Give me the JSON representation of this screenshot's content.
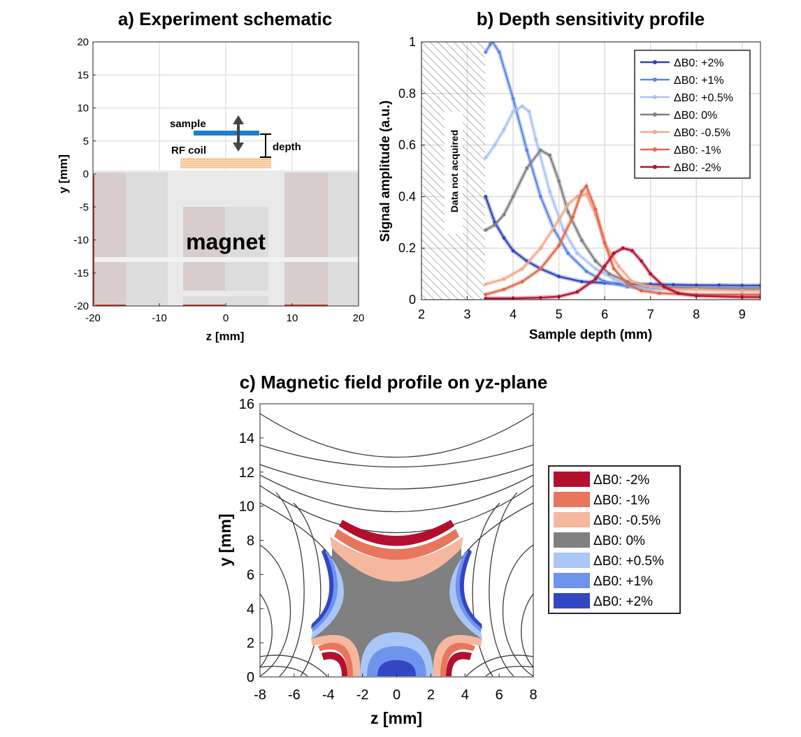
{
  "chart_data": [
    {
      "panel": "a",
      "type": "diagram",
      "title": "a) Experiment schematic",
      "xlabel": "z [mm]",
      "ylabel": "y [mm]",
      "xlim": [
        -20,
        20
      ],
      "ylim": [
        -20,
        20
      ],
      "xticks": [
        -20,
        -10,
        0,
        10,
        20
      ],
      "yticks": [
        20,
        15,
        10,
        5,
        0,
        -5,
        -10,
        -15,
        -20
      ],
      "grid": true,
      "labels": {
        "sample": "sample",
        "rf_coil": "RF coil",
        "depth": "depth",
        "magnet": "magnet"
      },
      "colors": {
        "sample": "#1f7fce",
        "coil": "#f0b070",
        "magnet_dark": "#d6cccc",
        "magnet_light": "#dcdcdc",
        "frame": "#e6e6e6"
      }
    },
    {
      "panel": "b",
      "type": "line",
      "title": "b) Depth sensitivity profile",
      "xlabel": "Sample depth (mm)",
      "ylabel": "Signal amplitude (a.u.)",
      "xlim": [
        2,
        9.4
      ],
      "ylim": [
        0,
        1
      ],
      "xticks": [
        2,
        3,
        4,
        5,
        6,
        7,
        8,
        9
      ],
      "yticks": [
        0,
        0.2,
        0.4,
        0.6,
        0.8,
        1
      ],
      "grid": true,
      "legend_position": "top-right",
      "hatched_region": {
        "x_from": 2.0,
        "x_to": 3.4,
        "label": "Data not acquired"
      },
      "series": [
        {
          "name": "ΔB0: +2%",
          "color": "#2d44b8",
          "x": [
            3.4,
            3.6,
            3.8,
            4.0,
            4.3,
            4.6,
            5.0,
            5.5,
            6.0,
            6.5,
            7.0,
            7.5,
            8.0,
            8.5,
            9.0,
            9.4
          ],
          "y": [
            0.4,
            0.3,
            0.24,
            0.19,
            0.15,
            0.12,
            0.09,
            0.07,
            0.065,
            0.06,
            0.06,
            0.058,
            0.056,
            0.056,
            0.055,
            0.055
          ]
        },
        {
          "name": "ΔB0: +1%",
          "color": "#5b86e6",
          "x": [
            3.4,
            3.5,
            3.55,
            3.7,
            4.0,
            4.3,
            4.6,
            4.9,
            5.2,
            5.6,
            6.0,
            6.5,
            7.0,
            7.5,
            8.0,
            9.0,
            9.4
          ],
          "y": [
            0.96,
            0.99,
            1.0,
            0.96,
            0.78,
            0.58,
            0.4,
            0.27,
            0.18,
            0.11,
            0.07,
            0.05,
            0.045,
            0.045,
            0.045,
            0.045,
            0.045
          ]
        },
        {
          "name": "ΔB0: +0.5%",
          "color": "#a8c4f2",
          "x": [
            3.4,
            3.6,
            3.8,
            4.0,
            4.2,
            4.35,
            4.5,
            4.8,
            5.1,
            5.4,
            5.8,
            6.2,
            6.6,
            7.0,
            8.0,
            9.0,
            9.4
          ],
          "y": [
            0.55,
            0.6,
            0.66,
            0.73,
            0.75,
            0.73,
            0.62,
            0.42,
            0.27,
            0.18,
            0.12,
            0.08,
            0.05,
            0.04,
            0.04,
            0.04,
            0.04
          ]
        },
        {
          "name": "ΔB0: 0%",
          "color": "#808080",
          "x": [
            3.4,
            3.6,
            3.8,
            4.0,
            4.3,
            4.6,
            4.8,
            5.0,
            5.2,
            5.5,
            5.8,
            6.1,
            6.5,
            7.0,
            8.0,
            9.0,
            9.4
          ],
          "y": [
            0.27,
            0.29,
            0.33,
            0.4,
            0.51,
            0.58,
            0.56,
            0.46,
            0.34,
            0.23,
            0.15,
            0.1,
            0.07,
            0.05,
            0.045,
            0.04,
            0.04
          ]
        },
        {
          "name": "ΔB0: -0.5%",
          "color": "#f3a98b",
          "x": [
            3.4,
            3.8,
            4.2,
            4.6,
            5.0,
            5.2,
            5.4,
            5.6,
            5.8,
            6.0,
            6.3,
            6.6,
            7.0,
            7.5,
            8.0,
            9.0,
            9.4
          ],
          "y": [
            0.06,
            0.08,
            0.12,
            0.2,
            0.31,
            0.37,
            0.4,
            0.41,
            0.33,
            0.22,
            0.13,
            0.07,
            0.05,
            0.04,
            0.04,
            0.035,
            0.035
          ]
        },
        {
          "name": "ΔB0: -1%",
          "color": "#e2664a",
          "x": [
            3.4,
            3.8,
            4.2,
            4.6,
            5.0,
            5.3,
            5.5,
            5.6,
            5.8,
            6.0,
            6.2,
            6.5,
            6.8,
            7.2,
            8.0,
            9.0,
            9.4
          ],
          "y": [
            0.02,
            0.04,
            0.07,
            0.12,
            0.21,
            0.32,
            0.42,
            0.44,
            0.35,
            0.22,
            0.12,
            0.06,
            0.035,
            0.025,
            0.02,
            0.02,
            0.02
          ]
        },
        {
          "name": "ΔB0: -2%",
          "color": "#b3102e",
          "x": [
            3.4,
            4.0,
            4.6,
            5.0,
            5.4,
            5.8,
            6.0,
            6.2,
            6.4,
            6.6,
            6.8,
            7.0,
            7.3,
            7.6,
            8.0,
            9.0,
            9.4
          ],
          "y": [
            0.005,
            0.005,
            0.008,
            0.012,
            0.03,
            0.08,
            0.13,
            0.18,
            0.2,
            0.19,
            0.15,
            0.1,
            0.05,
            0.025,
            0.015,
            0.01,
            0.01
          ]
        }
      ]
    },
    {
      "panel": "c",
      "type": "contour",
      "title": "c) Magnetic field profile on yz-plane",
      "xlabel": "z [mm]",
      "ylabel": "y [mm]",
      "xlim": [
        -8,
        8
      ],
      "ylim": [
        0,
        16
      ],
      "xticks": [
        -8,
        -6,
        -4,
        -2,
        0,
        2,
        4,
        6,
        8
      ],
      "yticks": [
        16,
        14,
        12,
        10,
        8,
        6,
        4,
        2,
        0
      ],
      "legend_position": "right",
      "legend": [
        {
          "name": "ΔB0: -2%",
          "color": "#b3102e"
        },
        {
          "name": "ΔB0: -1%",
          "color": "#e8765c"
        },
        {
          "name": "ΔB0: -0.5%",
          "color": "#f5b89f"
        },
        {
          "name": "ΔB0: 0%",
          "color": "#808080"
        },
        {
          "name": "ΔB0: +0.5%",
          "color": "#a9c6f7"
        },
        {
          "name": "ΔB0: +1%",
          "color": "#6f94ee"
        },
        {
          "name": "ΔB0: +2%",
          "color": "#3347c2"
        }
      ]
    }
  ]
}
